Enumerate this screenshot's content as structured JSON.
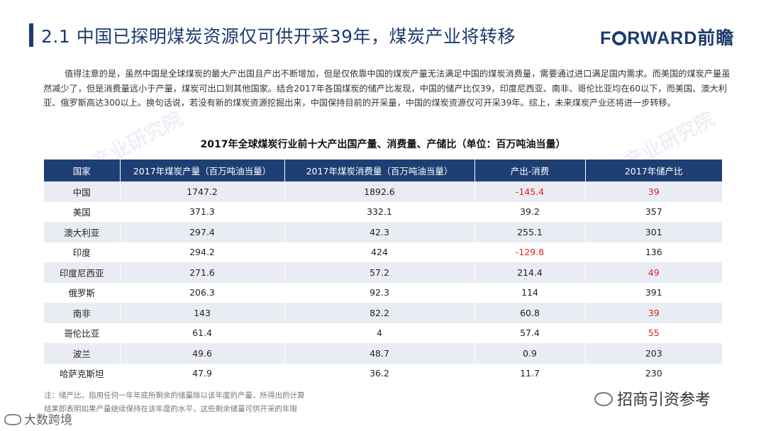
{
  "header": {
    "title": "2.1  中国已探明煤炭资源仅可供开采39年，煤炭产业将转移",
    "logo_prefix": "F",
    "logo_suffix": "RWARD前瞻"
  },
  "paragraph": "值得注意的是，虽然中国是全球煤炭的最大产出国且产出不断增加，但是仅依靠中国的煤炭产量无法满足中国的煤炭消费量，需要通过进口满足国内需求。而美国的煤炭产量虽然减少了，但是消费量远小于产量，煤炭可出口到其他国家。结合2017年各国煤炭的储产比发现，中国的储产比仅39，印度尼西亚、南非、哥伦比亚均在60以下，而美国、澳大利亚、俄罗斯高达300以上。换句话说，若没有新的煤炭资源挖掘出来，中国保持目前的开采量，中国的煤炭资源仅可开采39年。综上，未来煤炭产业还将进一步转移。",
  "table": {
    "title": "2017年全球煤炭行业前十大产出国产量、消费量、产储比（单位：百万吨油当量）",
    "headers": [
      "国家",
      "2017年煤炭产量（百万吨油当量）",
      "2017年煤炭消费量（百万吨油当量）",
      "产出-消费",
      "2017年储产比"
    ],
    "rows": [
      {
        "country": "中国",
        "production": "1747.2",
        "consumption": "1892.6",
        "diff": "-145.4",
        "ratio": "39"
      },
      {
        "country": "美国",
        "production": "371.3",
        "consumption": "332.1",
        "diff": "39.2",
        "ratio": "357"
      },
      {
        "country": "澳大利亚",
        "production": "297.4",
        "consumption": "42.3",
        "diff": "255.1",
        "ratio": "301"
      },
      {
        "country": "印度",
        "production": "294.2",
        "consumption": "424",
        "diff": "-129.8",
        "ratio": "136"
      },
      {
        "country": "印度尼西亚",
        "production": "271.6",
        "consumption": "57.2",
        "diff": "214.4",
        "ratio": "49"
      },
      {
        "country": "俄罗斯",
        "production": "206.3",
        "consumption": "92.3",
        "diff": "114",
        "ratio": "391"
      },
      {
        "country": "南非",
        "production": "143",
        "consumption": "82.2",
        "diff": "60.8",
        "ratio": "39"
      },
      {
        "country": "哥伦比亚",
        "production": "61.4",
        "consumption": "4",
        "diff": "57.4",
        "ratio": "55"
      },
      {
        "country": "波兰",
        "production": "49.6",
        "consumption": "48.7",
        "diff": "0.9",
        "ratio": "203"
      },
      {
        "country": "哈萨克斯坦",
        "production": "47.9",
        "consumption": "36.2",
        "diff": "11.7",
        "ratio": "230"
      }
    ]
  },
  "note_lines": [
    "注：储产比，指用任何一年年底所剩余的储量除以该年度的产量，所得出的计算",
    "结果即表明如果产量继续保持在该年度的水平，这些剩余储量可供开采的年限"
  ],
  "watermark": "前瞻产业研究院",
  "wechat_label": "招商引资参考",
  "corner_label": "大数跨境",
  "colors": {
    "header_blue": "#1e3f73",
    "negative_red": "#e02020",
    "row_stripe": "#e9ecf3"
  }
}
